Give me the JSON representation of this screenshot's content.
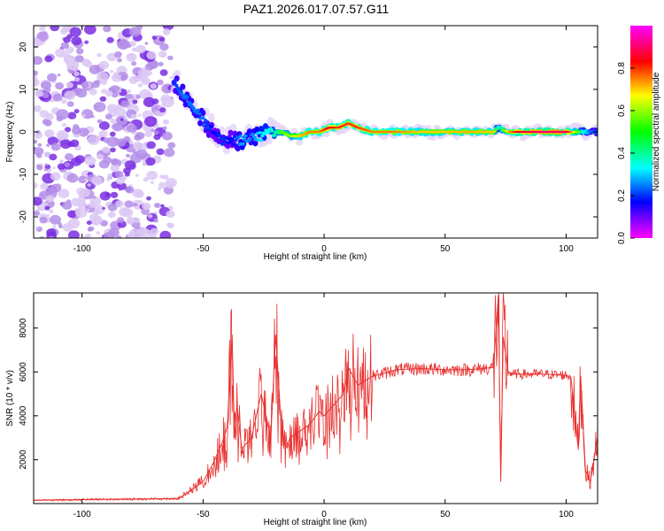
{
  "page_title": "PAZ1.2026.017.07.57.G11",
  "chart_data": [
    {
      "type": "heatmap",
      "title": "PAZ1.2026.017.07.57.G11",
      "xlabel": "Height of straight line (km)",
      "ylabel": "Frequency (Hz)",
      "xlim": [
        -120,
        113
      ],
      "ylim": [
        -25,
        25
      ],
      "xticks": [
        -100,
        -50,
        0,
        50,
        100
      ],
      "yticks": [
        -20,
        -10,
        0,
        10,
        20
      ],
      "grid": false,
      "colorbar": {
        "label": "Normalized spectral amplitude",
        "range": [
          0,
          1
        ],
        "ticks": [
          0.0,
          0.2,
          0.4,
          0.6,
          0.8
        ],
        "colormap": [
          "#ff00ff",
          "#0000ff",
          "#00ffff",
          "#00ff00",
          "#ffff00",
          "#ff0000",
          "#ff00ff"
        ],
        "low_color": "#ffffff"
      },
      "ridge": {
        "x": [
          -62,
          -58,
          -54,
          -50,
          -46,
          -42,
          -38,
          -34,
          -30,
          -26,
          -22,
          -18,
          -14,
          -10,
          -6,
          -2,
          2,
          6,
          10,
          14,
          20,
          30,
          40,
          50,
          60,
          70,
          72,
          76,
          80,
          90,
          100,
          106,
          110,
          113
        ],
        "freq": [
          12,
          9,
          6,
          3,
          0,
          -2,
          -2,
          -2,
          -1,
          -1,
          0,
          0,
          -1,
          -1,
          0,
          0,
          1,
          1,
          2,
          1,
          0,
          0,
          0,
          0,
          0,
          0,
          1,
          0,
          0,
          0,
          0,
          0,
          0,
          0
        ],
        "amplitude": [
          0.25,
          0.3,
          0.3,
          0.3,
          0.2,
          0.25,
          0.2,
          0.35,
          0.3,
          0.4,
          0.45,
          0.55,
          0.6,
          0.7,
          0.75,
          0.75,
          0.85,
          0.8,
          0.8,
          0.8,
          0.75,
          0.75,
          0.7,
          0.7,
          0.72,
          0.7,
          0.4,
          0.7,
          0.85,
          0.9,
          0.9,
          0.5,
          0.3,
          0.25
        ]
      },
      "noise_region_x": [
        -120,
        -63
      ]
    },
    {
      "type": "line",
      "xlabel": "Height of straight line (km)",
      "ylabel": "SNR (10 * v/v)",
      "xlim": [
        -120,
        113
      ],
      "ylim": [
        0,
        9600
      ],
      "xticks": [
        -100,
        -50,
        0,
        50,
        100
      ],
      "yticks": [
        2000,
        4000,
        6000,
        8000
      ],
      "grid": false,
      "color": "#e8312f",
      "series": [
        {
          "x": [
            -120,
            -100,
            -80,
            -60,
            -55,
            -50,
            -46,
            -42,
            -40,
            -38,
            -37,
            -36,
            -34,
            -30,
            -26,
            -22,
            -20,
            -18,
            -16,
            -14,
            -10,
            -6,
            -2,
            0,
            4,
            8,
            10,
            14,
            20,
            30,
            40,
            50,
            60,
            65,
            70,
            72,
            73,
            74,
            76,
            78,
            80,
            90,
            100,
            102,
            104,
            105,
            106,
            108,
            110,
            113
          ],
          "y": [
            150,
            180,
            200,
            230,
            600,
            1000,
            1800,
            2800,
            3500,
            7700,
            3000,
            4500,
            2500,
            3000,
            5000,
            3000,
            7700,
            4000,
            2500,
            3000,
            3300,
            3600,
            4200,
            4000,
            4500,
            5000,
            6200,
            5400,
            5800,
            6100,
            6150,
            6100,
            6100,
            6150,
            6200,
            9500,
            1000,
            7600,
            6000,
            5900,
            5900,
            5900,
            5850,
            5750,
            3500,
            2500,
            5800,
            1500,
            1000,
            3000
          ]
        }
      ]
    }
  ]
}
